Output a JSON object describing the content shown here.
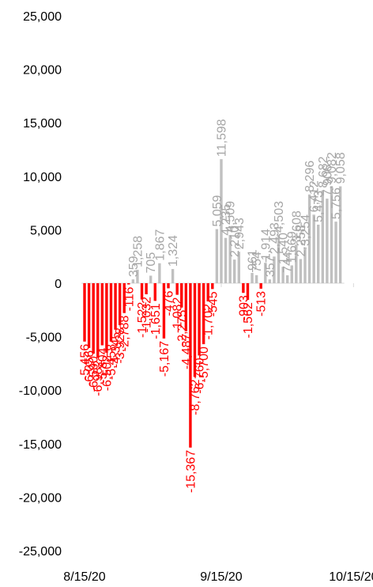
{
  "chart_data": {
    "type": "bar",
    "title": "",
    "xlabel": "",
    "ylabel": "",
    "ylim": [
      -25000,
      25000
    ],
    "y_ticks": [
      25000,
      20000,
      15000,
      10000,
      5000,
      0,
      -5000,
      -10000,
      -15000,
      -20000,
      -25000
    ],
    "y_tick_labels": [
      "25,000",
      "20,000",
      "15,000",
      "10,000",
      "5,000",
      "0",
      "-5,000",
      "-10,000",
      "-15,000",
      "-20,000",
      "-25,000"
    ],
    "x_tick_labels": [
      "8/15/20",
      "9/15/20",
      "10/15/20"
    ],
    "x_tick_dates": [
      "2020-08-15",
      "2020-09-15",
      "2020-10-15"
    ],
    "grid": false,
    "colors": {
      "positive": "#c0c0c0",
      "negative": "#ff0000",
      "positive_label": "#a6a6a6",
      "negative_label": "#ff0000",
      "axis": "#d9d9d9"
    },
    "bars": [
      {
        "date": "2020-08-15",
        "value": -5456
      },
      {
        "date": "2020-08-16",
        "value": -6056
      },
      {
        "date": "2020-08-17",
        "value": -6590
      },
      {
        "date": "2020-08-18",
        "value": -6982
      },
      {
        "date": "2020-08-19",
        "value": -5804
      },
      {
        "date": "2020-08-20",
        "value": -6502
      },
      {
        "date": "2020-08-21",
        "value": -5458
      },
      {
        "date": "2020-08-22",
        "value": -4345
      },
      {
        "date": "2020-08-23",
        "value": -3928
      },
      {
        "date": "2020-08-24",
        "value": -2788
      },
      {
        "date": "2020-08-25",
        "value": -116
      },
      {
        "date": "2020-08-26",
        "value": 359
      },
      {
        "date": "2020-08-27",
        "value": 1258
      },
      {
        "date": "2020-08-28",
        "value": -1522
      },
      {
        "date": "2020-08-29",
        "value": -1032
      },
      {
        "date": "2020-08-30",
        "value": 705
      },
      {
        "date": "2020-08-31",
        "value": -1651
      },
      {
        "date": "2020-09-01",
        "value": 1867
      },
      {
        "date": "2020-09-02",
        "value": -5167
      },
      {
        "date": "2020-09-03",
        "value": -476
      },
      {
        "date": "2020-09-04",
        "value": 1324
      },
      {
        "date": "2020-09-05",
        "value": -1082
      },
      {
        "date": "2020-09-06",
        "value": -2275
      },
      {
        "date": "2020-09-07",
        "value": -4487
      },
      {
        "date": "2020-09-08",
        "value": -15367
      },
      {
        "date": "2020-09-09",
        "value": -8762
      },
      {
        "date": "2020-09-10",
        "value": -6760
      },
      {
        "date": "2020-09-11",
        "value": -5700
      },
      {
        "date": "2020-09-12",
        "value": -1702
      },
      {
        "date": "2020-09-13",
        "value": -545
      },
      {
        "date": "2020-09-14",
        "value": 5059
      },
      {
        "date": "2020-09-15",
        "value": 11598
      },
      {
        "date": "2020-09-16",
        "value": 4235
      },
      {
        "date": "2020-09-17",
        "value": 4509
      },
      {
        "date": "2020-09-18",
        "value": 2210
      },
      {
        "date": "2020-09-19",
        "value": 2943
      },
      {
        "date": "2020-09-20",
        "value": -903
      },
      {
        "date": "2020-09-21",
        "value": -1562
      },
      {
        "date": "2020-09-22",
        "value": 961
      },
      {
        "date": "2020-09-23",
        "value": 754
      },
      {
        "date": "2020-09-24",
        "value": -513
      },
      {
        "date": "2020-09-25",
        "value": 1914
      },
      {
        "date": "2020-09-26",
        "value": 357
      },
      {
        "date": "2020-09-27",
        "value": 2493
      },
      {
        "date": "2020-09-28",
        "value": 4503
      },
      {
        "date": "2020-09-29",
        "value": 1540
      },
      {
        "date": "2020-09-30",
        "value": 744
      },
      {
        "date": "2020-10-01",
        "value": 1669
      },
      {
        "date": "2020-10-02",
        "value": 3608
      },
      {
        "date": "2020-10-03",
        "value": 2258
      },
      {
        "date": "2020-10-04",
        "value": 3254
      },
      {
        "date": "2020-10-05",
        "value": 8296
      },
      {
        "date": "2020-10-06",
        "value": 6412
      },
      {
        "date": "2020-10-07",
        "value": 5473
      },
      {
        "date": "2020-10-08",
        "value": 8682
      },
      {
        "date": "2020-10-09",
        "value": 7906
      },
      {
        "date": "2020-10-10",
        "value": 9082
      },
      {
        "date": "2020-10-11",
        "value": 5756
      },
      {
        "date": "2020-10-12",
        "value": 9058
      }
    ]
  }
}
